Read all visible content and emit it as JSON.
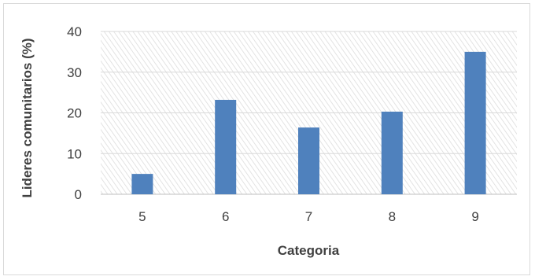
{
  "chart_data": {
    "type": "bar",
    "title": "",
    "xlabel": "Categoria",
    "ylabel": "Lideres comunitarios (%)",
    "categories": [
      "5",
      "6",
      "7",
      "8",
      "9"
    ],
    "values": [
      5.0,
      23.2,
      16.4,
      20.3,
      35.0
    ],
    "ylim": [
      0,
      40
    ],
    "yticks": [
      "0",
      "10",
      "20",
      "30",
      "40"
    ],
    "grid": true,
    "legend": "none",
    "bar_color": "#4f81bd",
    "background": "hatched"
  }
}
